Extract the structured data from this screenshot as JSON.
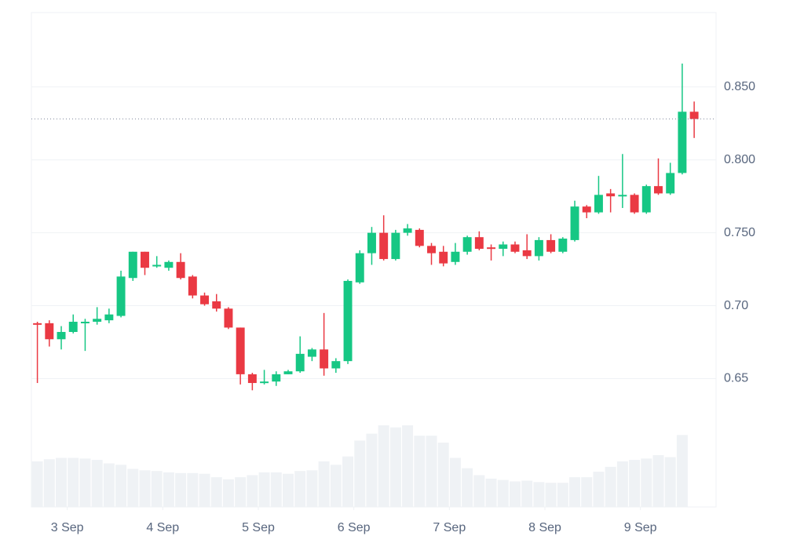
{
  "chart_data": {
    "type": "candlestick",
    "x": [
      -7.5,
      -4.5,
      -1.5,
      1.5,
      4.5,
      7.5,
      10.5,
      13.5,
      16.5,
      19.5,
      22.5,
      25.5,
      28.5,
      31.5,
      34.5,
      37.5,
      40.5,
      43.5,
      46.5,
      49.5,
      52.5,
      55.5,
      58.5,
      61.5,
      64.5,
      67.5,
      70.5,
      73.5,
      76.5,
      79.5,
      82.5,
      85.5,
      88.5,
      91.5,
      94.5,
      97.5,
      100.5,
      103.5,
      106.5,
      109.5,
      112.5,
      115.5,
      118.5,
      121.5,
      124.5,
      127.5,
      130.5,
      133.5,
      136.5,
      139.5,
      142.5,
      145.5,
      148.5,
      151.5,
      154.5,
      157.5
    ],
    "open": [
      0.688,
      0.688,
      0.677,
      0.682,
      0.688,
      0.689,
      0.69,
      0.693,
      0.719,
      0.737,
      0.727,
      0.726,
      0.73,
      0.72,
      0.707,
      0.703,
      0.698,
      0.685,
      0.653,
      0.647,
      0.648,
      0.653,
      0.655,
      0.665,
      0.67,
      0.657,
      0.662,
      0.716,
      0.736,
      0.75,
      0.732,
      0.75,
      0.752,
      0.741,
      0.737,
      0.73,
      0.737,
      0.747,
      0.74,
      0.739,
      0.742,
      0.738,
      0.734,
      0.745,
      0.737,
      0.745,
      0.768,
      0.764,
      0.777,
      0.775,
      0.776,
      0.764,
      0.782,
      0.777,
      0.791,
      0.833
    ],
    "high": [
      0.689,
      0.69,
      0.686,
      0.694,
      0.691,
      0.699,
      0.698,
      0.724,
      0.737,
      0.737,
      0.734,
      0.731,
      0.736,
      0.721,
      0.709,
      0.708,
      0.699,
      0.685,
      0.654,
      0.656,
      0.655,
      0.656,
      0.679,
      0.671,
      0.695,
      0.664,
      0.718,
      0.738,
      0.754,
      0.762,
      0.752,
      0.756,
      0.753,
      0.743,
      0.741,
      0.743,
      0.748,
      0.751,
      0.742,
      0.744,
      0.744,
      0.749,
      0.747,
      0.749,
      0.747,
      0.772,
      0.769,
      0.789,
      0.78,
      0.804,
      0.777,
      0.783,
      0.801,
      0.798,
      0.866,
      0.84
    ],
    "low": [
      0.647,
      0.672,
      0.67,
      0.681,
      0.669,
      0.687,
      0.688,
      0.692,
      0.717,
      0.721,
      0.726,
      0.724,
      0.718,
      0.705,
      0.7,
      0.696,
      0.684,
      0.646,
      0.642,
      0.646,
      0.645,
      0.653,
      0.654,
      0.662,
      0.652,
      0.654,
      0.66,
      0.715,
      0.728,
      0.731,
      0.731,
      0.748,
      0.74,
      0.728,
      0.727,
      0.728,
      0.735,
      0.738,
      0.731,
      0.734,
      0.736,
      0.732,
      0.731,
      0.736,
      0.736,
      0.744,
      0.76,
      0.763,
      0.764,
      0.767,
      0.763,
      0.763,
      0.776,
      0.776,
      0.79,
      0.815
    ],
    "close": [
      0.687,
      0.677,
      0.682,
      0.689,
      0.689,
      0.691,
      0.694,
      0.72,
      0.737,
      0.726,
      0.728,
      0.73,
      0.719,
      0.707,
      0.701,
      0.698,
      0.685,
      0.653,
      0.647,
      0.648,
      0.653,
      0.655,
      0.667,
      0.67,
      0.657,
      0.662,
      0.717,
      0.736,
      0.75,
      0.732,
      0.75,
      0.753,
      0.741,
      0.736,
      0.729,
      0.737,
      0.747,
      0.739,
      0.739,
      0.742,
      0.737,
      0.734,
      0.745,
      0.737,
      0.746,
      0.768,
      0.764,
      0.776,
      0.775,
      0.776,
      0.764,
      0.782,
      0.777,
      0.791,
      0.833,
      0.828
    ],
    "volume": [
      66,
      69,
      71,
      71,
      70,
      68,
      63,
      61,
      55,
      53,
      52,
      50,
      49,
      49,
      48,
      43,
      40,
      43,
      46,
      50,
      50,
      48,
      52,
      53,
      66,
      61,
      73,
      96,
      106,
      118,
      115,
      118,
      103,
      103,
      93,
      71,
      56,
      46,
      41,
      39,
      37,
      38,
      36,
      35,
      35,
      43,
      43,
      51,
      58,
      66,
      68,
      70,
      75,
      72,
      104,
      null
    ],
    "up_color": "#16c784",
    "down_color": "#ea3943",
    "volume_color": "#eff2f5",
    "xlim": [
      -9,
      163
    ],
    "xticks": [
      {
        "value": 0,
        "label": "3 Sep"
      },
      {
        "value": 24,
        "label": "4 Sep"
      },
      {
        "value": 48,
        "label": "5 Sep"
      },
      {
        "value": 72,
        "label": "6 Sep"
      },
      {
        "value": 96,
        "label": "7 Sep"
      },
      {
        "value": 120,
        "label": "8 Sep"
      },
      {
        "value": 144,
        "label": "9 Sep"
      }
    ],
    "ylim": [
      0.562,
      0.901
    ],
    "yticks": [
      0.65,
      {
        "value": 0.7,
        "label": "0.70"
      },
      {
        "value": 0.75,
        "label": "0.750"
      },
      {
        "value": 0.8,
        "label": "0.800"
      },
      {
        "value": 0.85,
        "label": "0.850"
      }
    ],
    "grid": true
  }
}
